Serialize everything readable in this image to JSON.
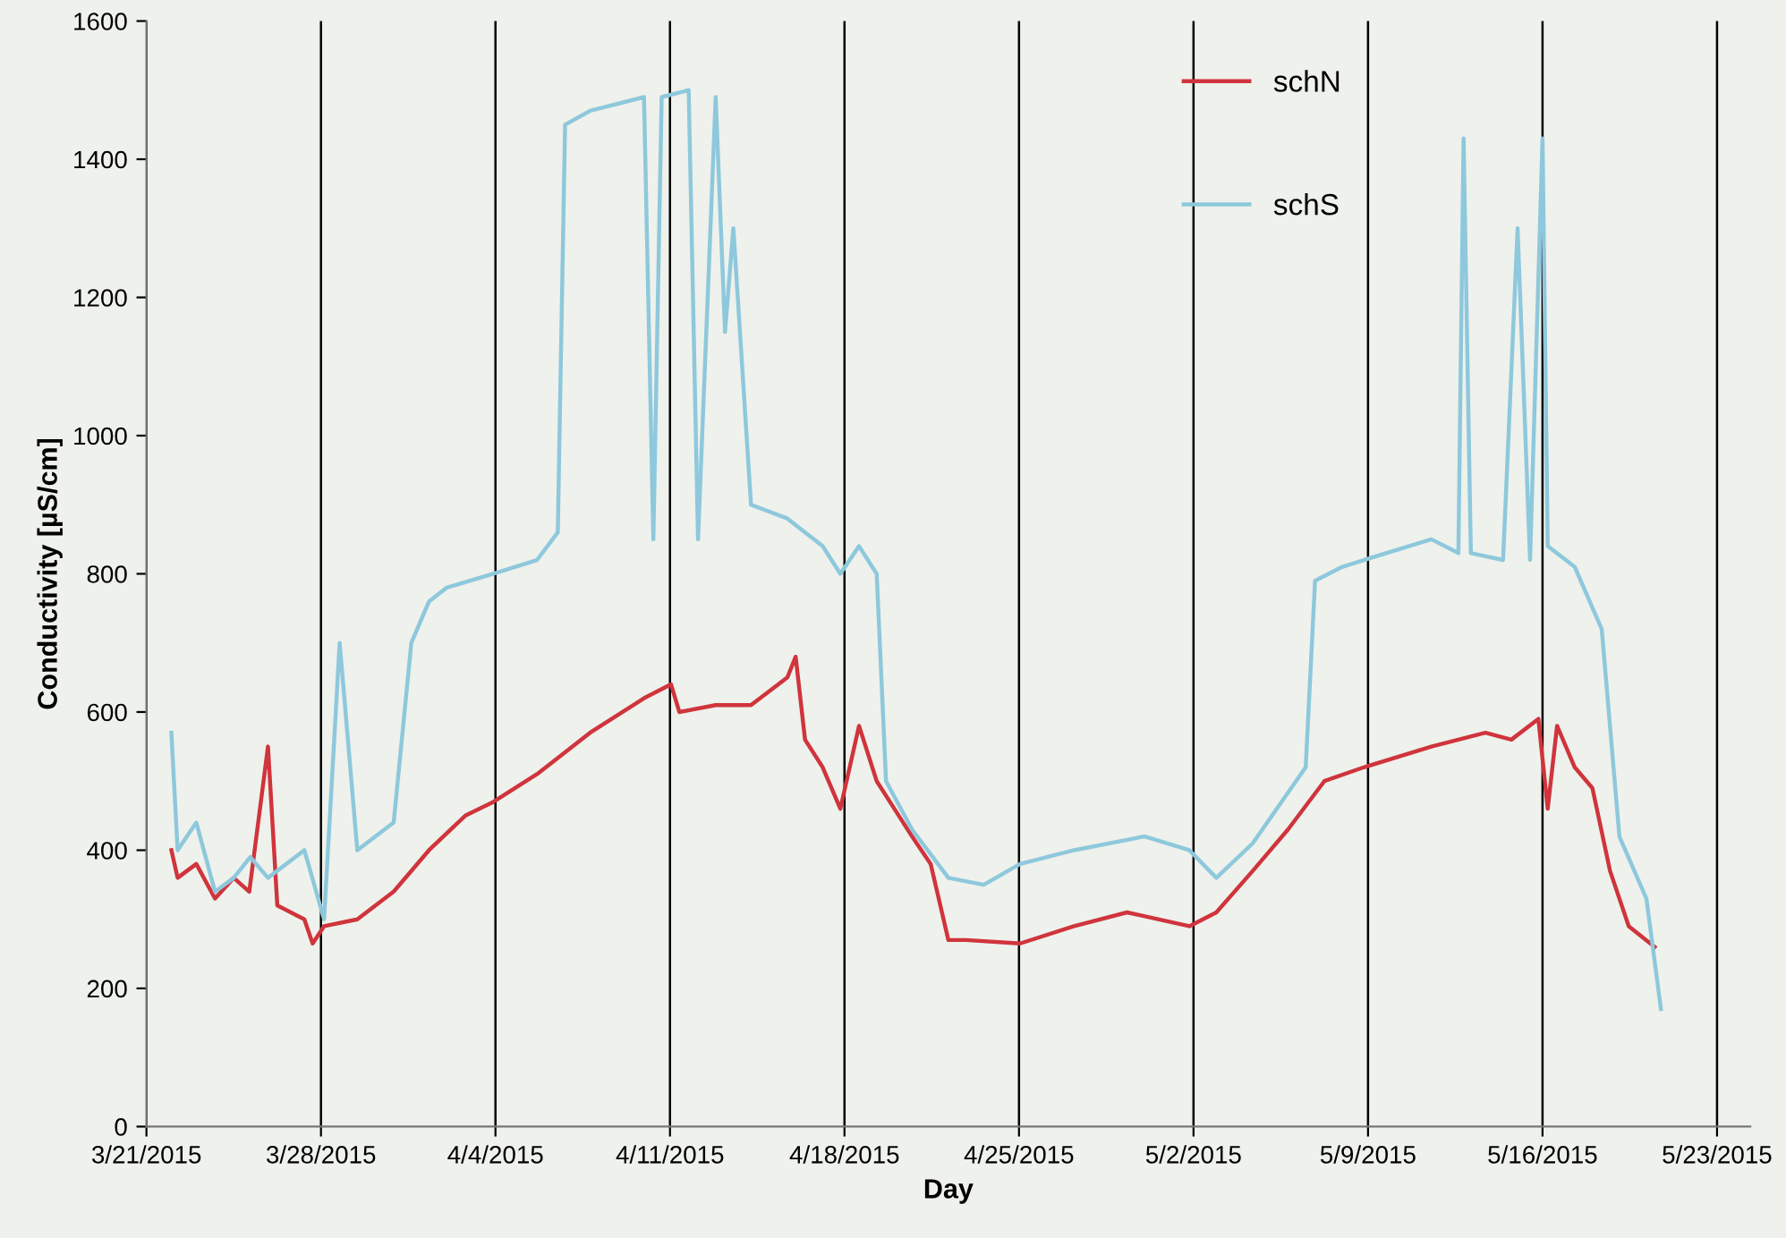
{
  "chart_data": {
    "type": "line",
    "xlabel": "Day",
    "ylabel": "Conductivity [µS/cm]",
    "xlim": [
      "2015-03-21",
      "2015-05-24T08:00"
    ],
    "xticks": [
      {
        "value": "2015-03-21",
        "label": "3/21/2015"
      },
      {
        "value": "2015-03-28",
        "label": "3/28/2015"
      },
      {
        "value": "2015-04-04",
        "label": "4/4/2015"
      },
      {
        "value": "2015-04-11",
        "label": "4/11/2015"
      },
      {
        "value": "2015-04-18",
        "label": "4/18/2015"
      },
      {
        "value": "2015-04-25",
        "label": "4/25/2015"
      },
      {
        "value": "2015-05-02",
        "label": "5/2/2015"
      },
      {
        "value": "2015-05-09",
        "label": "5/9/2015"
      },
      {
        "value": "2015-05-16",
        "label": "5/16/2015"
      },
      {
        "value": "2015-05-23",
        "label": "5/23/2015"
      }
    ],
    "ylim": [
      0,
      1600
    ],
    "yticks": [
      0,
      200,
      400,
      600,
      800,
      1000,
      1200,
      1400,
      1600
    ],
    "grid": "x",
    "legend": "top right",
    "marker": "none",
    "line_style": "solid",
    "series": [
      {
        "name": "schN",
        "color": "#d0343c",
        "x": [
          "2015-03-22T00:00",
          "2015-03-22T06:00",
          "2015-03-23T00:00",
          "2015-03-23T18:00",
          "2015-03-24T12:00",
          "2015-03-25T03:00",
          "2015-03-25T21:00",
          "2015-03-26T06:00",
          "2015-03-27T08:00",
          "2015-03-27T16:00",
          "2015-03-28T03:00",
          "2015-03-29T11:00",
          "2015-03-30T22:00",
          "2015-04-01T08:00",
          "2015-04-02T19:00",
          "2015-04-03T22:00",
          "2015-04-05T16:00",
          "2015-04-07T19:00",
          "2015-04-09T23:00",
          "2015-04-11T01:00",
          "2015-04-11T09:00",
          "2015-04-12T20:00",
          "2015-04-14T06:00",
          "2015-04-15T17:00",
          "2015-04-16T01:00",
          "2015-04-16T10:00",
          "2015-04-17T03:00",
          "2015-04-17T20:00",
          "2015-04-18T14:00",
          "2015-04-19T07:00",
          "2015-04-20T00:00",
          "2015-04-20T17:00",
          "2015-04-21T11:00",
          "2015-04-22T04:00",
          "2015-04-22T21:00",
          "2015-04-25T01:00",
          "2015-04-27T05:00",
          "2015-04-29T08:00",
          "2015-05-01T20:00",
          "2015-05-02T22:00",
          "2015-05-04T09:00",
          "2015-05-05T19:00",
          "2015-05-07T06:00",
          "2015-05-08T20:00",
          "2015-05-11T13:00",
          "2015-05-13T17:00",
          "2015-05-14T18:00",
          "2015-05-15T20:00",
          "2015-05-16T05:00",
          "2015-05-16T14:00",
          "2015-05-17T07:00",
          "2015-05-18T00:00",
          "2015-05-18T17:00",
          "2015-05-19T11:00",
          "2015-05-20T12:00"
        ],
        "values": [
          400,
          360,
          380,
          330,
          360,
          340,
          550,
          320,
          300,
          265,
          290,
          300,
          340,
          400,
          450,
          470,
          510,
          570,
          620,
          640,
          600,
          610,
          610,
          650,
          680,
          560,
          520,
          460,
          580,
          500,
          460,
          420,
          380,
          270,
          270,
          265,
          290,
          310,
          290,
          310,
          370,
          430,
          500,
          520,
          550,
          570,
          560,
          590,
          460,
          580,
          520,
          490,
          370,
          290,
          260
        ]
      },
      {
        "name": "schS",
        "color": "#8ec8dc",
        "x": [
          "2015-03-22T00:00",
          "2015-03-22T06:00",
          "2015-03-23T00:00",
          "2015-03-23T18:00",
          "2015-03-24T12:00",
          "2015-03-25T04:00",
          "2015-03-25T21:00",
          "2015-03-27T08:00",
          "2015-03-28T03:00",
          "2015-03-28T18:00",
          "2015-03-29T11:00",
          "2015-03-30T22:00",
          "2015-03-31T15:00",
          "2015-04-01T08:00",
          "2015-04-02T01:00",
          "2015-04-03T22:00",
          "2015-04-05T16:00",
          "2015-04-06T12:00",
          "2015-04-06T19:00",
          "2015-04-07T19:00",
          "2015-04-09T23:00",
          "2015-04-10T08:00",
          "2015-04-10T16:00",
          "2015-04-11T18:00",
          "2015-04-12T03:00",
          "2015-04-12T20:00",
          "2015-04-13T05:00",
          "2015-04-13T13:00",
          "2015-04-14T06:00",
          "2015-04-15T17:00",
          "2015-04-17T03:00",
          "2015-04-17T20:00",
          "2015-04-18T14:00",
          "2015-04-19T07:00",
          "2015-04-19T16:00",
          "2015-04-20T17:00",
          "2015-04-22T04:00",
          "2015-04-23T14:00",
          "2015-04-25T01:00",
          "2015-04-27T05:00",
          "2015-04-30T01:00",
          "2015-05-01T20:00",
          "2015-05-02T22:00",
          "2015-05-04T09:00",
          "2015-05-06T12:00",
          "2015-05-06T21:00",
          "2015-05-07T23:00",
          "2015-05-08T20:00",
          "2015-05-11T13:00",
          "2015-05-12T15:00",
          "2015-05-12T20:00",
          "2015-05-13T03:00",
          "2015-05-14T10:00",
          "2015-05-15T00:00",
          "2015-05-15T12:00",
          "2015-05-16T00:00",
          "2015-05-16T05:00",
          "2015-05-17T07:00",
          "2015-05-18T09:00",
          "2015-05-19T02:00",
          "2015-05-20T04:00",
          "2015-05-20T18:00"
        ],
        "values": [
          570,
          400,
          440,
          340,
          360,
          390,
          360,
          400,
          300,
          700,
          400,
          440,
          700,
          760,
          780,
          800,
          820,
          860,
          1450,
          1470,
          1490,
          850,
          1490,
          1500,
          850,
          1490,
          1150,
          1300,
          900,
          880,
          840,
          800,
          840,
          800,
          500,
          430,
          360,
          350,
          380,
          400,
          420,
          400,
          360,
          410,
          520,
          790,
          810,
          820,
          850,
          830,
          1430,
          830,
          820,
          1300,
          820,
          1430,
          840,
          810,
          720,
          420,
          330,
          170
        ]
      }
    ]
  }
}
